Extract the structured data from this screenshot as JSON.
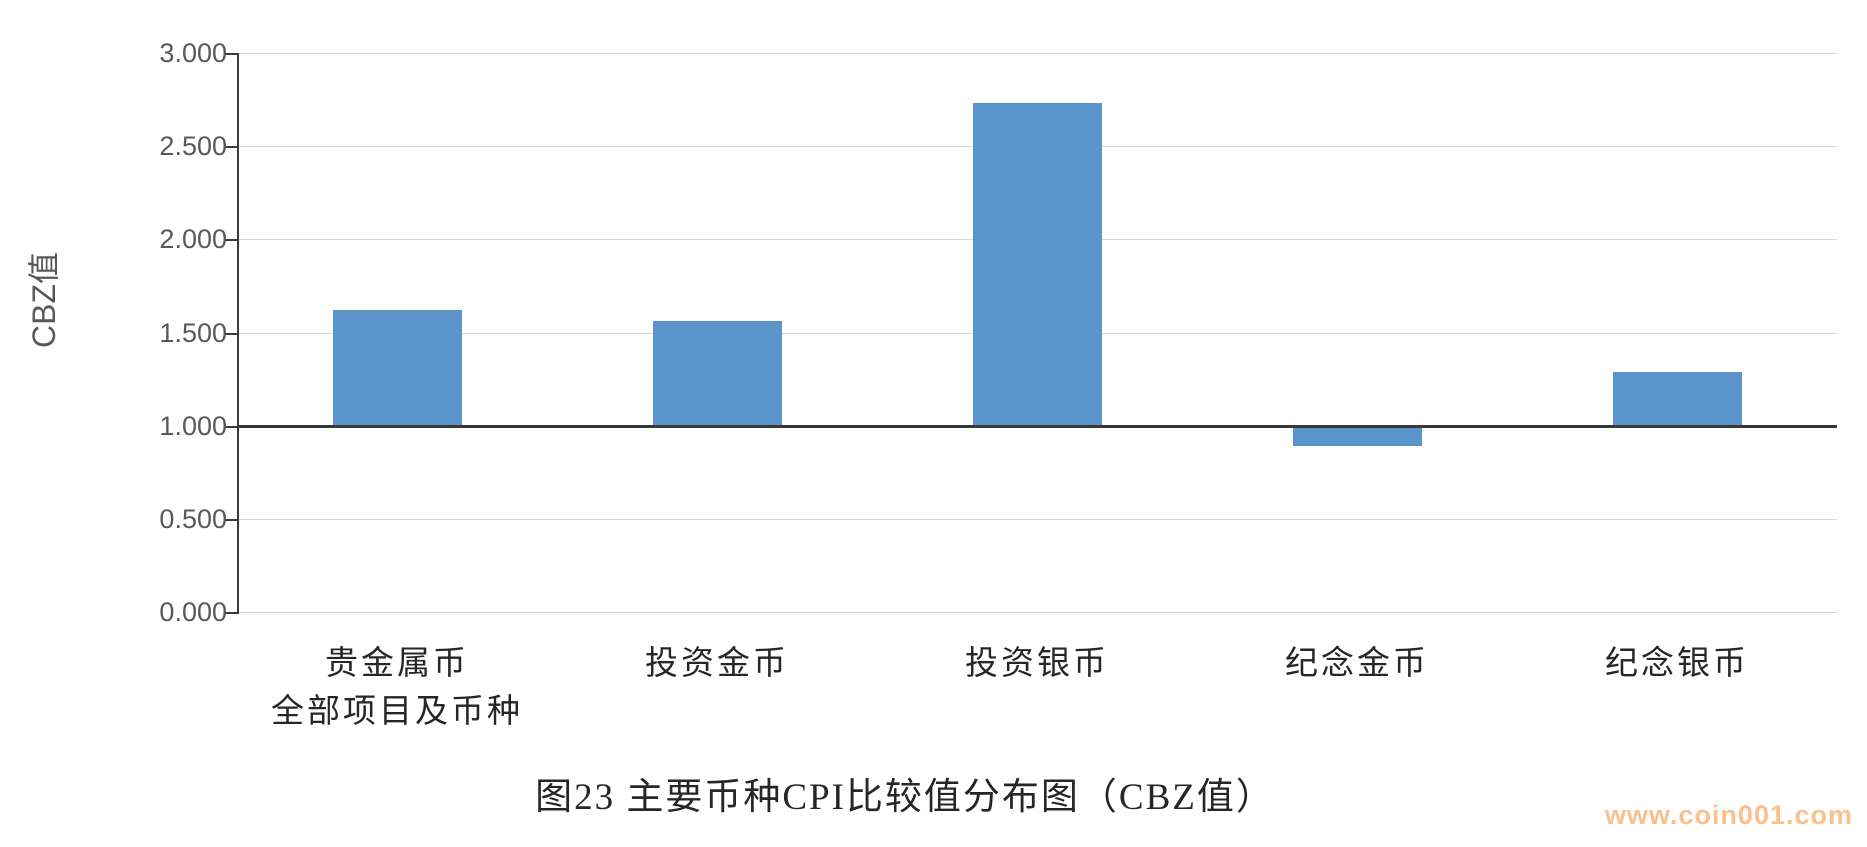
{
  "page": {
    "background_color": "#ffffff"
  },
  "chart_data": {
    "type": "bar",
    "title": "图23 主要币种CPI比较值分布图（CBZ值）",
    "ylabel": "CBZ值",
    "xlabel": "",
    "categories": [
      "贵金属币\n全部项目及币种",
      "投资金币",
      "投资银币",
      "纪念金币",
      "纪念银币"
    ],
    "values": [
      1.62,
      1.56,
      2.73,
      0.89,
      1.29
    ],
    "ylim": [
      0,
      3
    ],
    "baseline": 1.0,
    "ytick_labels": [
      "0.000",
      "0.500",
      "1.000",
      "1.500",
      "2.000",
      "2.500",
      "3.000"
    ],
    "grid": true,
    "legend": false,
    "bar_color": "#5b94cb",
    "axis_color": "#3a3a3a",
    "gridline_color": "#d9d9d9",
    "tick_label_color": "#595959"
  },
  "watermark": {
    "text": "www.coin001.com",
    "color": "#fac08e"
  }
}
